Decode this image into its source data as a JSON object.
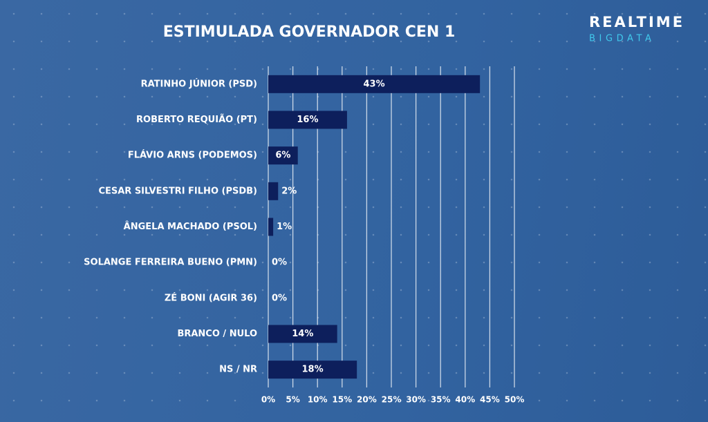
{
  "chart_data": {
    "type": "barh",
    "title": "ESTIMULADA GOVERNADOR CEN 1",
    "categories": [
      "RATINHO JÚNIOR (PSD)",
      "ROBERTO REQUIÃO (PT)",
      "FLÁVIO ARNS (PODEMOS)",
      "CESAR SILVESTRI FILHO (PSDB)",
      "ÂNGELA MACHADO (PSOL)",
      "SOLANGE FERREIRA BUENO (PMN)",
      "ZÉ BONI (AGIR 36)",
      "BRANCO / NULO",
      "NS / NR"
    ],
    "values": [
      43,
      16,
      6,
      2,
      1,
      0,
      0,
      14,
      18
    ],
    "value_labels": [
      "43%",
      "16%",
      "6%",
      "2%",
      "1%",
      "0%",
      "0%",
      "14%",
      "18%"
    ],
    "color": "#0d1f5c",
    "xlim": [
      0,
      50
    ],
    "xticks": [
      {
        "value": 0,
        "label": "0%"
      },
      {
        "value": 5,
        "label": "5%"
      },
      {
        "value": 10,
        "label": "10%"
      },
      {
        "value": 15,
        "label": "15%"
      },
      {
        "value": 20,
        "label": "20%"
      },
      {
        "value": 25,
        "label": "25%"
      },
      {
        "value": 30,
        "label": "30%"
      },
      {
        "value": 35,
        "label": "35%"
      },
      {
        "value": 40,
        "label": "40%"
      },
      {
        "value": 45,
        "label": "45%"
      },
      {
        "value": 50,
        "label": "50%"
      }
    ],
    "grid": true
  },
  "logo": {
    "line1": "REALTIME",
    "line2": "BIGDATA"
  }
}
